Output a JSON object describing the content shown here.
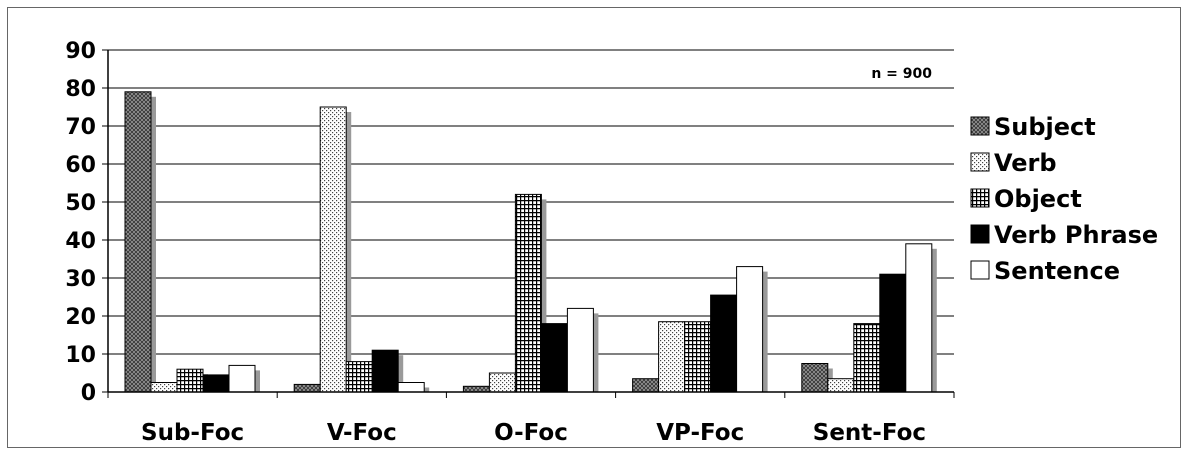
{
  "chart_data": {
    "type": "bar",
    "title": "",
    "xlabel": "",
    "ylabel": "",
    "ylim": [
      0,
      90
    ],
    "yticks": [
      0,
      10,
      20,
      30,
      40,
      50,
      60,
      70,
      80,
      90
    ],
    "grid": "horizontal",
    "legend_position": "right",
    "annotation": "n = 900",
    "categories": [
      "Sub-Foc",
      "V-Foc",
      "O-Foc",
      "VP-Foc",
      "Sent-Foc"
    ],
    "series": [
      {
        "name": "Subject",
        "pattern": "crosshatch-fine",
        "values": [
          79,
          2,
          1.5,
          3.5,
          7.5
        ]
      },
      {
        "name": "Verb",
        "pattern": "dots",
        "values": [
          2.5,
          75,
          5,
          18.5,
          3.5
        ]
      },
      {
        "name": "Object",
        "pattern": "grid",
        "values": [
          6,
          8,
          52,
          18.5,
          18
        ]
      },
      {
        "name": "Verb Phrase",
        "pattern": "solid-black",
        "values": [
          4.5,
          11,
          18,
          25.5,
          31
        ]
      },
      {
        "name": "Sentence",
        "pattern": "white",
        "values": [
          7,
          2.5,
          22,
          33,
          39
        ]
      }
    ]
  }
}
